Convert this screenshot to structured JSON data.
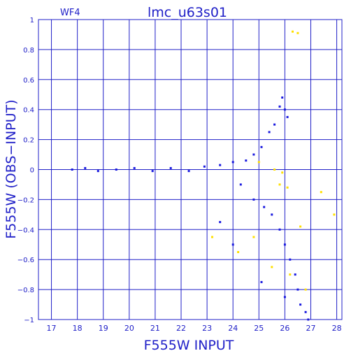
{
  "chart_data": {
    "type": "scatter",
    "title": "lmc_u63s01",
    "panel_label": "WF4",
    "xlabel": "F555W INPUT",
    "ylabel": "F555W (OBS−INPUT)",
    "xlim": [
      16.5,
      28.2
    ],
    "ylim": [
      -1,
      1
    ],
    "x_ticks": [
      17,
      18,
      19,
      20,
      21,
      22,
      23,
      24,
      25,
      26,
      27,
      28
    ],
    "y_ticks": [
      1,
      0.8,
      0.6,
      0.4,
      0.2,
      0,
      -0.2,
      -0.4,
      -0.6,
      -0.8,
      -1
    ],
    "y_tick_labels": [
      "1",
      "0.8",
      "0.6",
      "0.4",
      "0.2",
      "0",
      "−0.2",
      "−0.4",
      "−0.6",
      "−0.8",
      "−1"
    ],
    "grid": true,
    "colors": {
      "axis": "#2020c8",
      "primary": "#1a1adf",
      "secondary": "#ffe000"
    },
    "series": [
      {
        "color": "#1a1adf",
        "values": [
          [
            17.8,
            0.0
          ],
          [
            18.3,
            0.01
          ],
          [
            18.8,
            -0.01
          ],
          [
            19.5,
            0.0
          ],
          [
            20.2,
            0.01
          ],
          [
            20.9,
            -0.01
          ],
          [
            21.6,
            0.01
          ],
          [
            22.3,
            -0.01
          ],
          [
            22.9,
            0.02
          ],
          [
            23.5,
            0.03
          ],
          [
            24.0,
            0.05
          ],
          [
            24.5,
            0.06
          ],
          [
            24.8,
            0.1
          ],
          [
            25.1,
            0.15
          ],
          [
            25.4,
            0.25
          ],
          [
            25.6,
            0.3
          ],
          [
            25.8,
            0.42
          ],
          [
            25.9,
            0.48
          ],
          [
            26.0,
            0.4
          ],
          [
            26.1,
            0.35
          ],
          [
            24.3,
            -0.1
          ],
          [
            24.8,
            -0.2
          ],
          [
            25.2,
            -0.25
          ],
          [
            25.5,
            -0.3
          ],
          [
            25.8,
            -0.4
          ],
          [
            26.0,
            -0.5
          ],
          [
            26.2,
            -0.6
          ],
          [
            26.4,
            -0.7
          ],
          [
            26.5,
            -0.8
          ],
          [
            26.6,
            -0.9
          ],
          [
            26.8,
            -0.95
          ],
          [
            26.9,
            -1.0
          ],
          [
            23.5,
            -0.35
          ],
          [
            24.0,
            -0.5
          ],
          [
            25.1,
            -0.75
          ],
          [
            26.0,
            -0.85
          ]
        ]
      },
      {
        "color": "#ffe000",
        "values": [
          [
            26.3,
            0.92
          ],
          [
            26.5,
            0.91
          ],
          [
            25.0,
            0.05
          ],
          [
            25.6,
            0.0
          ],
          [
            25.9,
            -0.02
          ],
          [
            26.1,
            -0.12
          ],
          [
            23.2,
            -0.45
          ],
          [
            24.2,
            -0.55
          ],
          [
            24.8,
            -0.45
          ],
          [
            25.5,
            -0.65
          ],
          [
            26.2,
            -0.7
          ],
          [
            26.8,
            -0.8
          ],
          [
            27.9,
            -0.3
          ],
          [
            27.4,
            -0.15
          ],
          [
            26.6,
            -0.38
          ],
          [
            25.8,
            -0.1
          ]
        ]
      }
    ]
  }
}
